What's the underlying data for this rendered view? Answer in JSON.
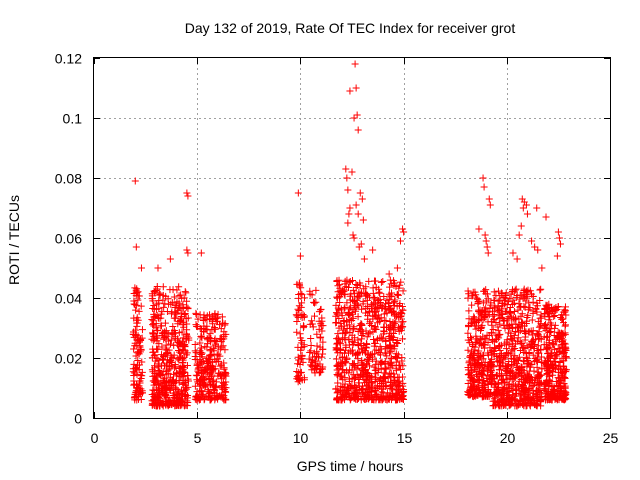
{
  "chart_data": {
    "type": "scatter",
    "title": "Day 132 of 2019, Rate Of TEC Index for receiver grot",
    "xlabel": "GPS time / hours",
    "ylabel": "ROTI / TECUs",
    "xlim": [
      0,
      25
    ],
    "ylim": [
      0,
      0.12
    ],
    "grid": true,
    "marker": "+",
    "x_ticks": [
      0,
      5,
      10,
      15,
      20,
      25
    ],
    "x_tick_labels": [
      "0",
      "5",
      "10",
      "15",
      "20",
      "25"
    ],
    "y_ticks": [
      0,
      0.02,
      0.04,
      0.06,
      0.08,
      0.1,
      0.12
    ],
    "y_tick_labels": [
      "0",
      "0.02",
      "0.04",
      "0.06",
      "0.08",
      "0.1",
      "0.12"
    ],
    "series": [
      {
        "name": "ROTI",
        "color": "#ff0000",
        "points": [
          [
            2.0,
            0.079
          ],
          [
            2.05,
            0.057
          ],
          [
            2.3,
            0.05
          ],
          [
            4.5,
            0.075
          ],
          [
            4.55,
            0.074
          ],
          [
            4.5,
            0.056
          ],
          [
            4.55,
            0.055
          ],
          [
            5.2,
            0.055
          ],
          [
            3.7,
            0.053
          ],
          [
            3.1,
            0.05
          ],
          [
            9.9,
            0.075
          ],
          [
            10.0,
            0.054
          ],
          [
            9.95,
            0.045
          ],
          [
            12.65,
            0.118
          ],
          [
            12.7,
            0.11
          ],
          [
            12.4,
            0.109
          ],
          [
            12.75,
            0.101
          ],
          [
            12.6,
            0.1
          ],
          [
            12.8,
            0.096
          ],
          [
            12.2,
            0.083
          ],
          [
            12.25,
            0.08
          ],
          [
            12.5,
            0.082
          ],
          [
            12.3,
            0.076
          ],
          [
            12.9,
            0.075
          ],
          [
            13.0,
            0.073
          ],
          [
            12.7,
            0.071
          ],
          [
            12.4,
            0.07
          ],
          [
            12.35,
            0.068
          ],
          [
            12.8,
            0.068
          ],
          [
            13.05,
            0.066
          ],
          [
            12.3,
            0.065
          ],
          [
            12.55,
            0.061
          ],
          [
            12.6,
            0.06
          ],
          [
            12.95,
            0.058
          ],
          [
            12.85,
            0.057
          ],
          [
            14.95,
            0.063
          ],
          [
            15.0,
            0.062
          ],
          [
            14.85,
            0.059
          ],
          [
            13.5,
            0.056
          ],
          [
            13.1,
            0.053
          ],
          [
            14.7,
            0.05
          ],
          [
            14.3,
            0.048
          ],
          [
            18.85,
            0.08
          ],
          [
            18.9,
            0.077
          ],
          [
            19.15,
            0.073
          ],
          [
            19.2,
            0.071
          ],
          [
            18.65,
            0.063
          ],
          [
            18.95,
            0.061
          ],
          [
            19.0,
            0.059
          ],
          [
            19.05,
            0.057
          ],
          [
            19.1,
            0.055
          ],
          [
            20.75,
            0.073
          ],
          [
            20.85,
            0.072
          ],
          [
            20.95,
            0.071
          ],
          [
            20.8,
            0.07
          ],
          [
            21.0,
            0.068
          ],
          [
            21.45,
            0.07
          ],
          [
            21.9,
            0.067
          ],
          [
            20.7,
            0.064
          ],
          [
            20.6,
            0.061
          ],
          [
            21.2,
            0.059
          ],
          [
            21.35,
            0.057
          ],
          [
            21.5,
            0.056
          ],
          [
            22.5,
            0.062
          ],
          [
            22.55,
            0.06
          ],
          [
            22.6,
            0.058
          ],
          [
            22.45,
            0.054
          ],
          [
            20.3,
            0.055
          ],
          [
            20.5,
            0.053
          ],
          [
            21.7,
            0.05
          ],
          [
            20.5,
            0.004
          ],
          [
            20.45,
            0.005
          ]
        ],
        "clusters": [
          {
            "x_range": [
              1.9,
              2.35
            ],
            "y_range": [
              0.006,
              0.044
            ],
            "count": 110
          },
          {
            "x_range": [
              2.8,
              4.6
            ],
            "y_range": [
              0.004,
              0.044
            ],
            "count": 480
          },
          {
            "x_range": [
              4.9,
              6.4
            ],
            "y_range": [
              0.006,
              0.035
            ],
            "count": 300
          },
          {
            "x_range": [
              9.8,
              10.2
            ],
            "y_range": [
              0.012,
              0.045
            ],
            "count": 60
          },
          {
            "x_range": [
              10.4,
              11.1
            ],
            "y_range": [
              0.015,
              0.043
            ],
            "count": 70
          },
          {
            "x_range": [
              11.7,
              15.0
            ],
            "y_range": [
              0.006,
              0.046
            ],
            "count": 780
          },
          {
            "x_range": [
              18.1,
              19.3
            ],
            "y_range": [
              0.007,
              0.043
            ],
            "count": 300
          },
          {
            "x_range": [
              19.3,
              21.7
            ],
            "y_range": [
              0.004,
              0.043
            ],
            "count": 620
          },
          {
            "x_range": [
              21.8,
              22.9
            ],
            "y_range": [
              0.006,
              0.038
            ],
            "count": 320
          }
        ]
      }
    ]
  }
}
